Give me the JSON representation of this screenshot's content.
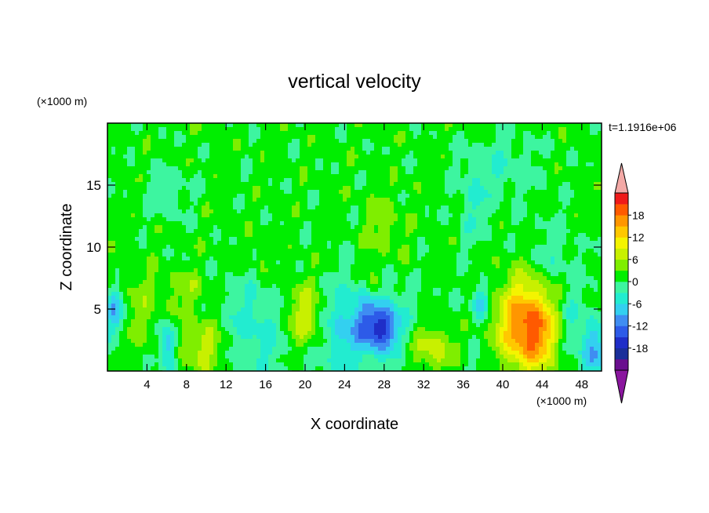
{
  "chart_data": {
    "type": "heatmap",
    "title": "vertical velocity",
    "xlabel": "X coordinate",
    "ylabel": "Z coordinate",
    "x_unit": "(×1000 m)",
    "y_unit": "(×1000 m)",
    "time_label": "t=1.1916e+06",
    "xlim": [
      0,
      50
    ],
    "ylim": [
      0,
      20
    ],
    "x_ticks": [
      4,
      8,
      12,
      16,
      20,
      24,
      28,
      32,
      36,
      40,
      44,
      48
    ],
    "y_ticks": [
      5,
      10,
      15
    ],
    "colorbar": {
      "levels": [
        -21,
        -18,
        -15,
        -12,
        -9,
        -6,
        -3,
        0,
        3,
        6,
        9,
        12,
        15,
        18,
        21
      ],
      "tick_labels": [
        "18",
        "12",
        "6",
        "0",
        "-6",
        "-12",
        "-18"
      ],
      "tick_values": [
        18,
        12,
        6,
        0,
        -6,
        -12,
        -18
      ],
      "colors": [
        "#6a0f8e",
        "#1a2f9a",
        "#1f2ec8",
        "#2d5be8",
        "#3f8df2",
        "#33d0f0",
        "#22ecd0",
        "#3df5a0",
        "#00ee00",
        "#7fee00",
        "#c8f000",
        "#f4f400",
        "#ffc800",
        "#ff9600",
        "#ff5a00",
        "#ef1a1a"
      ],
      "under_color": "#8a169e",
      "over_color": "#f3a9a6"
    },
    "features": [
      {
        "x": 42.5,
        "z": 3.8,
        "amp": 17,
        "sx": 2.1,
        "sz": 2.6
      },
      {
        "x": 43.8,
        "z": 2.4,
        "amp": 5,
        "sx": 2.2,
        "sz": 1.8
      },
      {
        "x": 20,
        "z": 4.3,
        "amp": 9,
        "sx": 1.5,
        "sz": 2.0
      },
      {
        "x": 9.8,
        "z": 2.0,
        "amp": 8,
        "sx": 2.0,
        "sz": 1.8
      },
      {
        "x": 33,
        "z": 1.8,
        "amp": 8,
        "sx": 1.6,
        "sz": 1.4
      },
      {
        "x": 3.5,
        "z": 4.2,
        "amp": 4,
        "sx": 1.8,
        "sz": 2.5
      },
      {
        "x": 27.5,
        "z": 3.5,
        "amp": -14,
        "sx": 1.3,
        "sz": 1.3
      },
      {
        "x": 26,
        "z": 4.6,
        "amp": -5,
        "sx": 3.2,
        "sz": 2.6
      },
      {
        "x": 6.0,
        "z": 2.2,
        "amp": -11,
        "sx": 0.6,
        "sz": 1.3
      },
      {
        "x": 0.8,
        "z": 4.7,
        "amp": -10,
        "sx": 0.7,
        "sz": 1.3
      },
      {
        "x": 14.5,
        "z": 3.6,
        "amp": -5,
        "sx": 3.0,
        "sz": 2.6
      },
      {
        "x": 37.8,
        "z": 5.6,
        "amp": -8,
        "sx": 0.7,
        "sz": 1.0
      },
      {
        "x": 49.2,
        "z": 1.8,
        "amp": -9,
        "sx": 0.9,
        "sz": 1.4
      },
      {
        "x": 46.8,
        "z": 3.8,
        "amp": -5,
        "sx": 1.4,
        "sz": 2.0
      },
      {
        "x": 23.5,
        "z": 3.0,
        "amp": -4,
        "sx": 1.6,
        "sz": 2.2
      },
      {
        "x": 26.8,
        "z": 7.3,
        "amp": 6,
        "sx": 0.5,
        "sz": 1.0
      },
      {
        "x": 15.5,
        "z": 9.3,
        "amp": 4,
        "sx": 0.4,
        "sz": 1.1
      },
      {
        "x": 8.5,
        "z": 6.5,
        "amp": 4,
        "sx": 1.5,
        "sz": 1.0
      },
      {
        "x": 45,
        "z": 9.0,
        "amp": -3.6,
        "sx": 2.0,
        "sz": 2.0
      },
      {
        "x": 37,
        "z": 13.5,
        "amp": -3.6,
        "sx": 1.2,
        "sz": 2.5
      },
      {
        "x": 40,
        "z": 16.5,
        "amp": -3.5,
        "sx": 2.5,
        "sz": 2.0
      },
      {
        "x": 28,
        "z": 11.5,
        "amp": 3.4,
        "sx": 1.5,
        "sz": 2.0
      },
      {
        "x": 6,
        "z": 14.5,
        "amp": -3.5,
        "sx": 1.5,
        "sz": 1.5
      }
    ]
  }
}
